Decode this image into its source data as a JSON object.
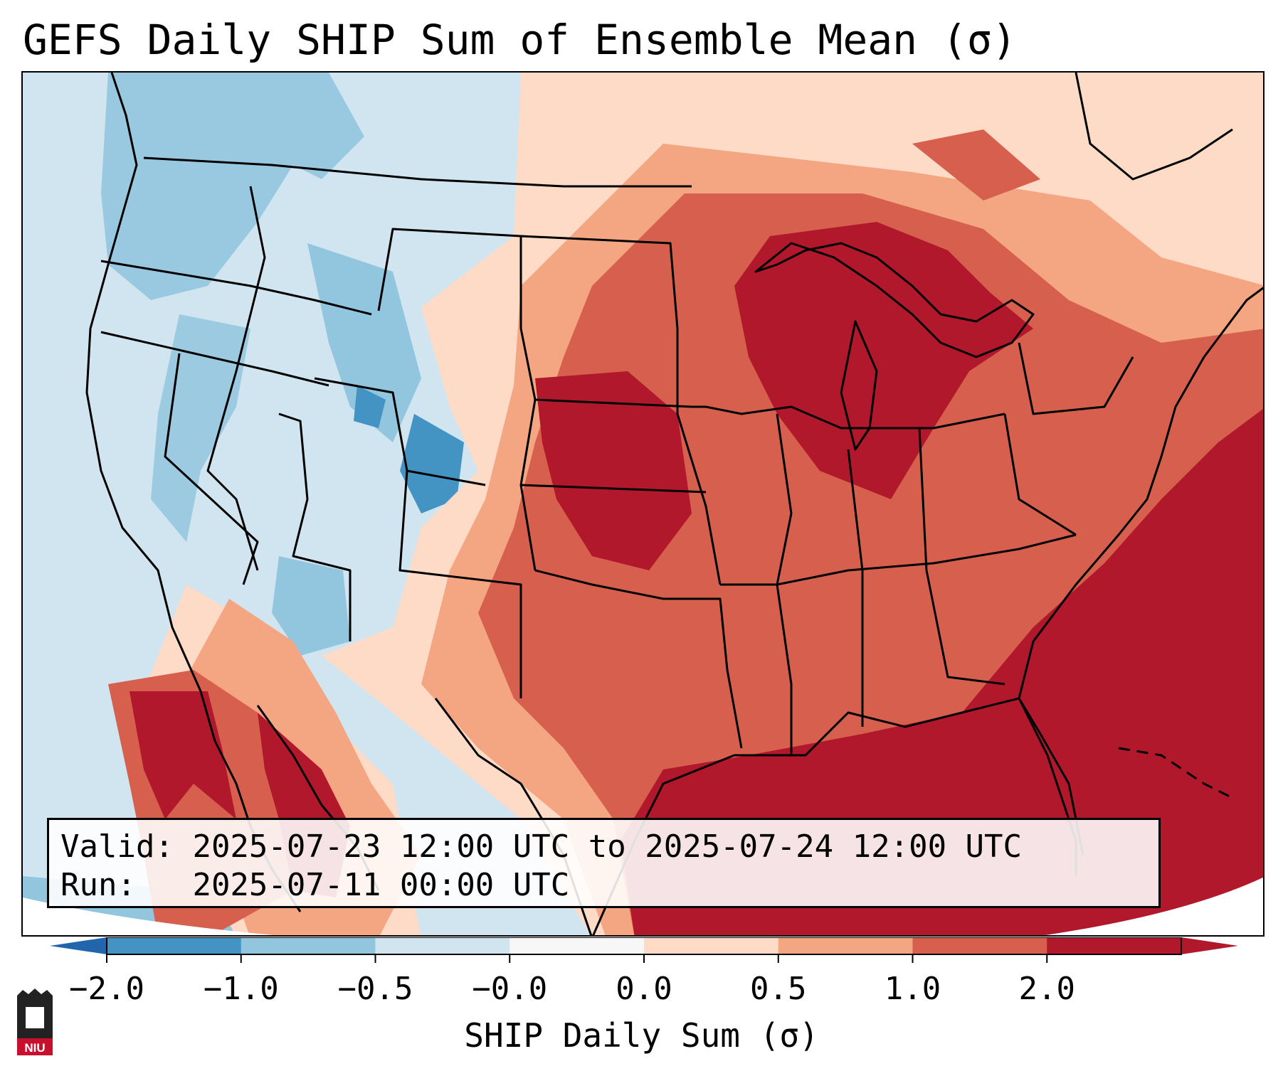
{
  "title": "GEFS Daily SHIP Sum of Ensemble Mean (σ)",
  "info": {
    "valid_label": "Valid:",
    "valid_value": "2025-07-23 12:00 UTC to 2025-07-24 12:00 UTC",
    "run_label": "Run:",
    "run_value": "2025-07-11 00:00 UTC"
  },
  "colorbar": {
    "label": "SHIP Daily Sum (σ)",
    "ticks": [
      "−2.0",
      "−1.0",
      "−0.5",
      "−0.0",
      "0.0",
      "0.5",
      "1.0",
      "2.0"
    ],
    "colors": [
      "#4393c3",
      "#92c5de",
      "#d1e5f0",
      "#f7f7f7",
      "#fddbc7",
      "#f4a582",
      "#d6604d",
      "#b2182b"
    ],
    "extend_low_color": "#2166ac",
    "extend_high_color": "#b2182b"
  },
  "logo": {
    "text": "NIU",
    "color": "#c8102e"
  }
}
